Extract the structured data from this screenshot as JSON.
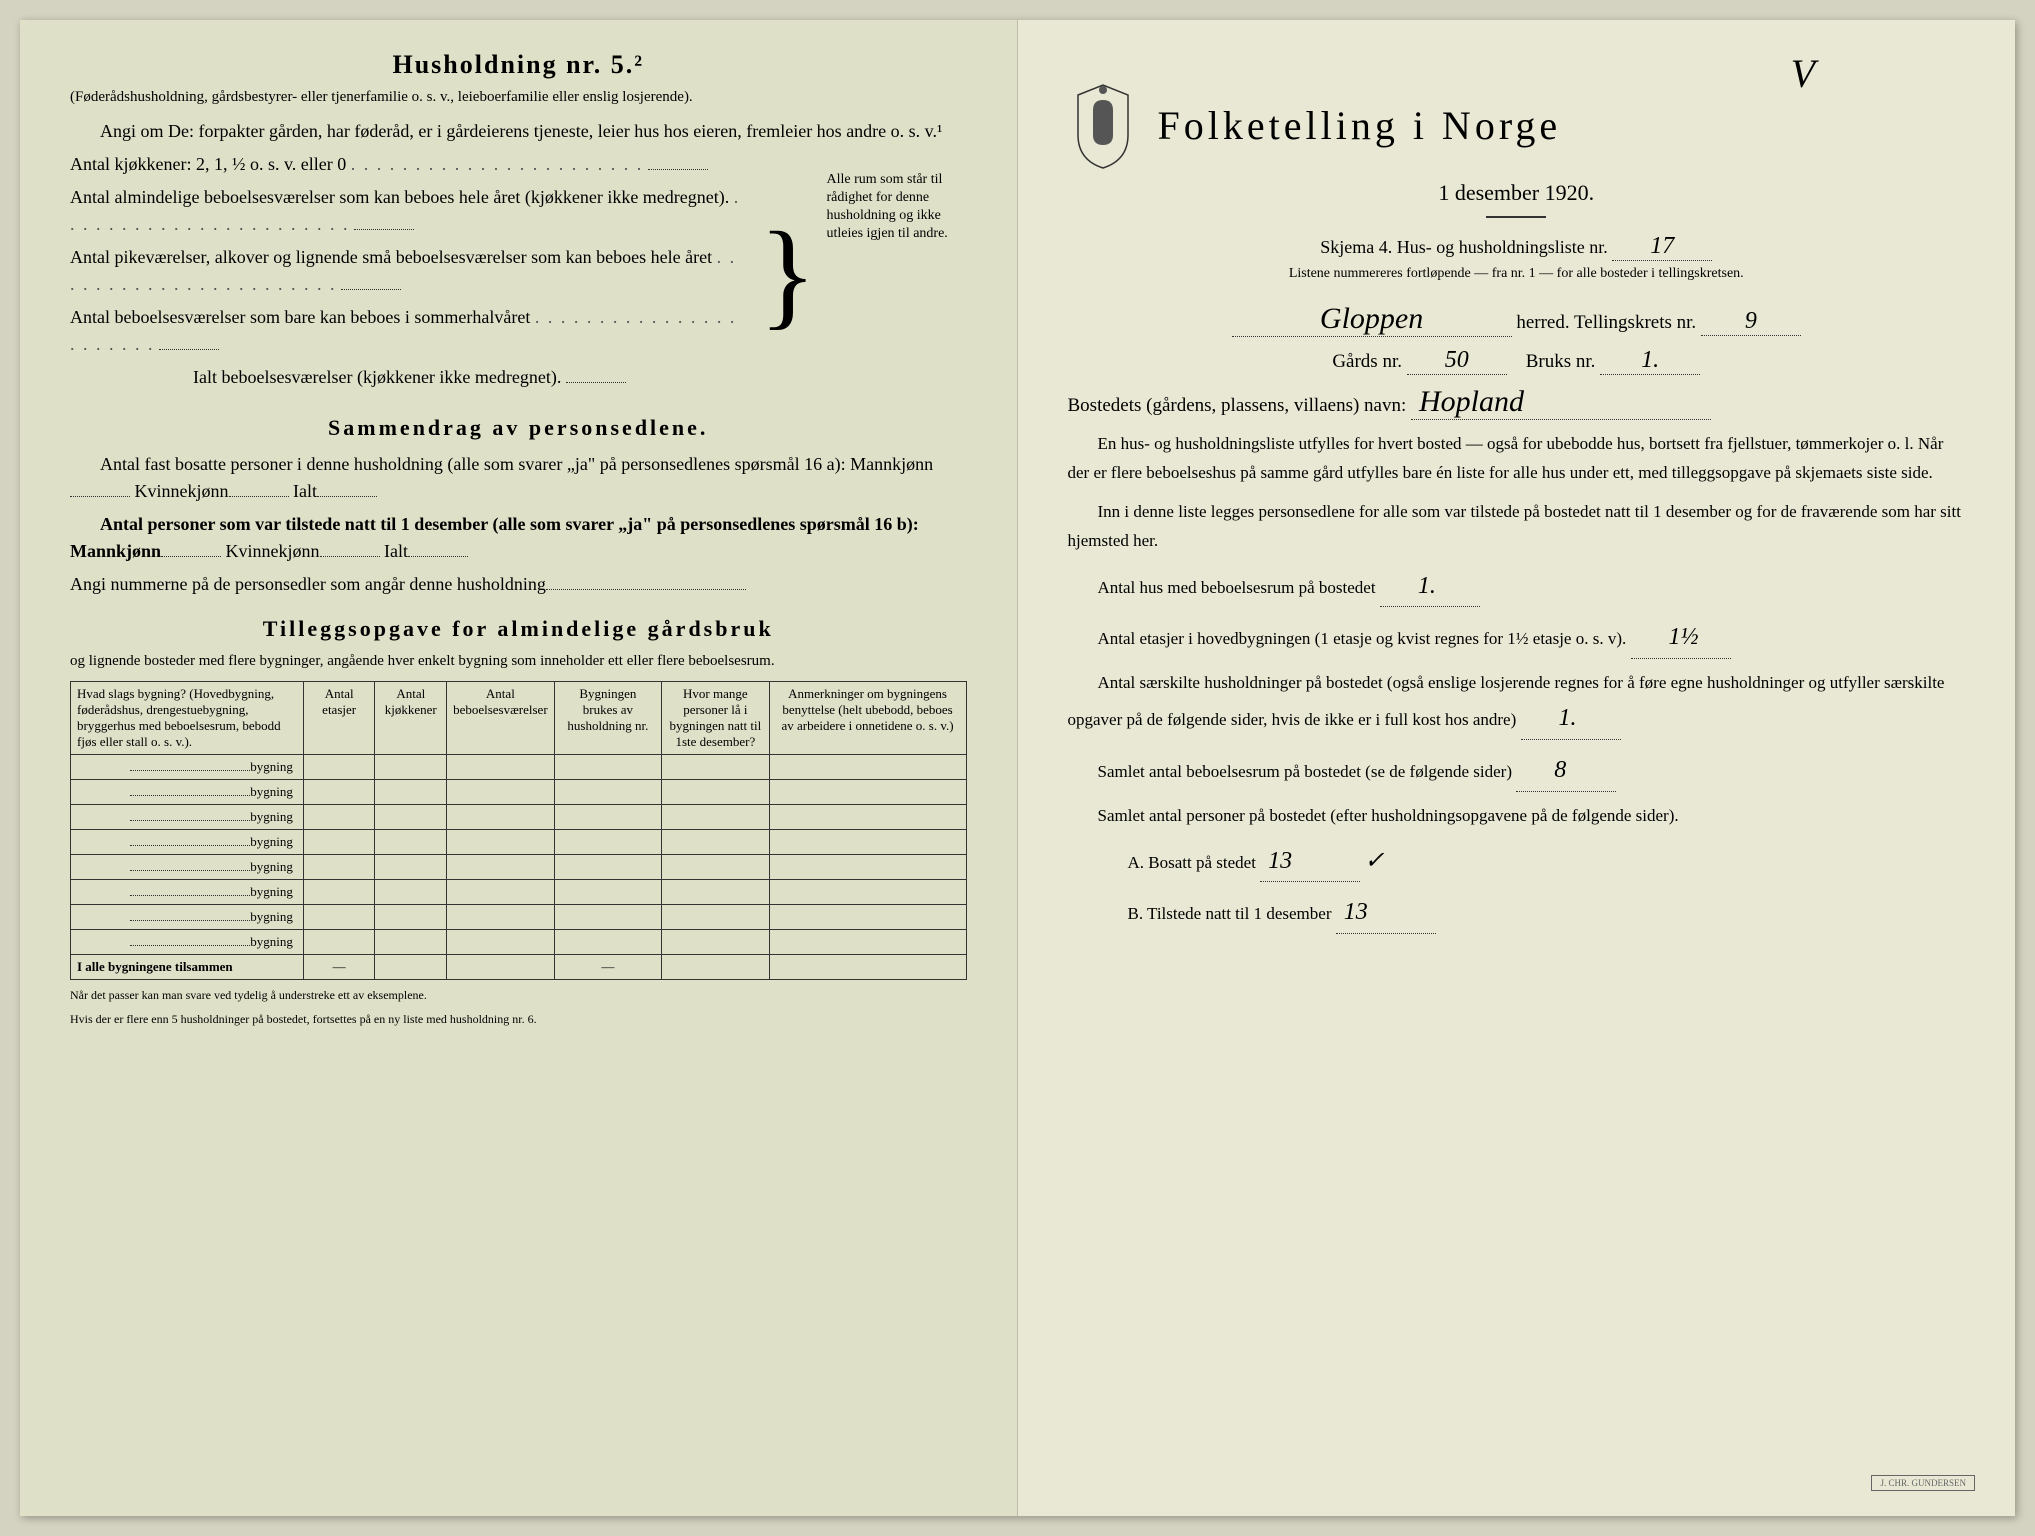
{
  "left": {
    "heading": "Husholdning nr. 5.²",
    "intro1": "(Føderådshusholdning, gårdsbestyrer- eller tjenerfamilie o. s. v., leieboerfamilie eller enslig losjerende).",
    "intro2": "Angi om De:  forpakter gården, har føderåd, er i gårdeierens tjeneste, leier hus hos eieren, fremleier hos andre o. s. v.¹",
    "kitchens": "Antal kjøkkener: 2, 1, ½ o. s. v. eller 0",
    "rooms1": "Antal almindelige beboelsesværelser som kan beboes hele året (kjøkkener ikke medregnet).",
    "rooms2": "Antal pikeværelser, alkover og lignende små beboelsesværelser som kan beboes hele året",
    "rooms3": "Antal beboelsesværelser som bare kan beboes i sommerhalvåret",
    "rooms_total": "Ialt beboelsesværelser  (kjøkkener ikke medregnet).",
    "brace_text": "Alle rum som står til rådighet for denne husholdning og ikke utleies igjen til andre.",
    "summary_heading": "Sammendrag av personsedlene.",
    "sum1": "Antal fast bosatte personer i denne husholdning (alle som svarer „ja\" på personsedlenes spørsmål 16 a): Mannkjønn",
    "sum1b": "Kvinnekjønn",
    "sum1c": "Ialt",
    "sum2": "Antal personer som var tilstede natt til 1 desember (alle som svarer „ja\" på personsedlenes spørsmål 16 b): Mannkjønn",
    "sum2b": "Kvinnekjønn",
    "sum2c": "Ialt",
    "sum3": "Angi nummerne på de personsedler som angår denne husholdning",
    "tillegg_heading": "Tilleggsopgave for almindelige gårdsbruk",
    "tillegg_sub": "og lignende bosteder med flere bygninger, angående hver enkelt bygning som inneholder ett eller flere beboelsesrum.",
    "table": {
      "col1": "Hvad slags bygning?\n(Hovedbygning, føderådshus, drengestuebygning, bryggerhus med beboelsesrum, bebodd fjøs eller stall o. s. v.).",
      "col2": "Antal etasjer",
      "col3": "Antal kjøkkener",
      "col4": "Antal beboelsesværelser",
      "col5": "Bygningen brukes av husholdning nr.",
      "col6": "Hvor mange personer lå i bygningen natt til 1ste desember?",
      "col7": "Anmerkninger om bygningens benyttelse (helt ubebodd, beboes av arbeidere i onnetidene o. s. v.)",
      "row_label": "bygning",
      "total_label": "I alle bygningene tilsammen"
    },
    "footnote1": "Når det passer kan man svare ved tydelig å understreke ett av eksemplene.",
    "footnote2": "Hvis der er flere enn 5 husholdninger på bostedet, fortsettes på en ny liste med husholdning nr. 6."
  },
  "right": {
    "check": "V",
    "title": "Folketelling i Norge",
    "date": "1 desember 1920.",
    "schema": "Skjema 4.  Hus- og husholdningsliste nr.",
    "schema_nr": "17",
    "list_note": "Listene nummereres fortløpende — fra nr. 1 — for alle bosteder i tellingskretsen.",
    "herred_hw": "Gloppen",
    "herred_label": "herred.  Tellingskrets nr.",
    "krets_nr": "9",
    "gards_label": "Gårds nr.",
    "gards_nr": "50",
    "bruks_label": "Bruks nr.",
    "bruks_nr": "1.",
    "bosted_label": "Bostedets (gårdens, plassens, villaens) navn:",
    "bosted_hw": "Hopland",
    "p1": "En hus- og husholdningsliste utfylles for hvert bosted — også for ubebodde hus, bortsett fra fjellstuer, tømmerkojer o. l.  Når der er flere beboelseshus på samme gård utfylles bare én liste for alle hus under ett, med tilleggsopgave på skjemaets siste side.",
    "p2": "Inn i denne liste legges personsedlene for alle som var tilstede på bostedet natt til 1 desember og for de fraværende som har sitt hjemsted her.",
    "q1": "Antal hus med beboelsesrum på bostedet",
    "q1_a": "1.",
    "q2": "Antal etasjer i hovedbygningen (1 etasje og kvist regnes for 1½ etasje o. s. v).",
    "q2_a": "1½",
    "q3": "Antal særskilte husholdninger på bostedet (også enslige losjerende regnes for å føre egne husholdninger og utfyller særskilte opgaver på de følgende sider, hvis de ikke er i full kost hos andre)",
    "q3_a": "1.",
    "q4": "Samlet antal beboelsesrum på bostedet (se de følgende sider)",
    "q4_a": "8",
    "q5": "Samlet antal personer på bostedet (efter husholdningsopgavene på de følgende sider).",
    "qA": "A.  Bosatt på stedet",
    "qA_a": "13",
    "qA_check": "✓",
    "qB": "B.  Tilstede natt til 1 desember",
    "qB_a": "13"
  }
}
